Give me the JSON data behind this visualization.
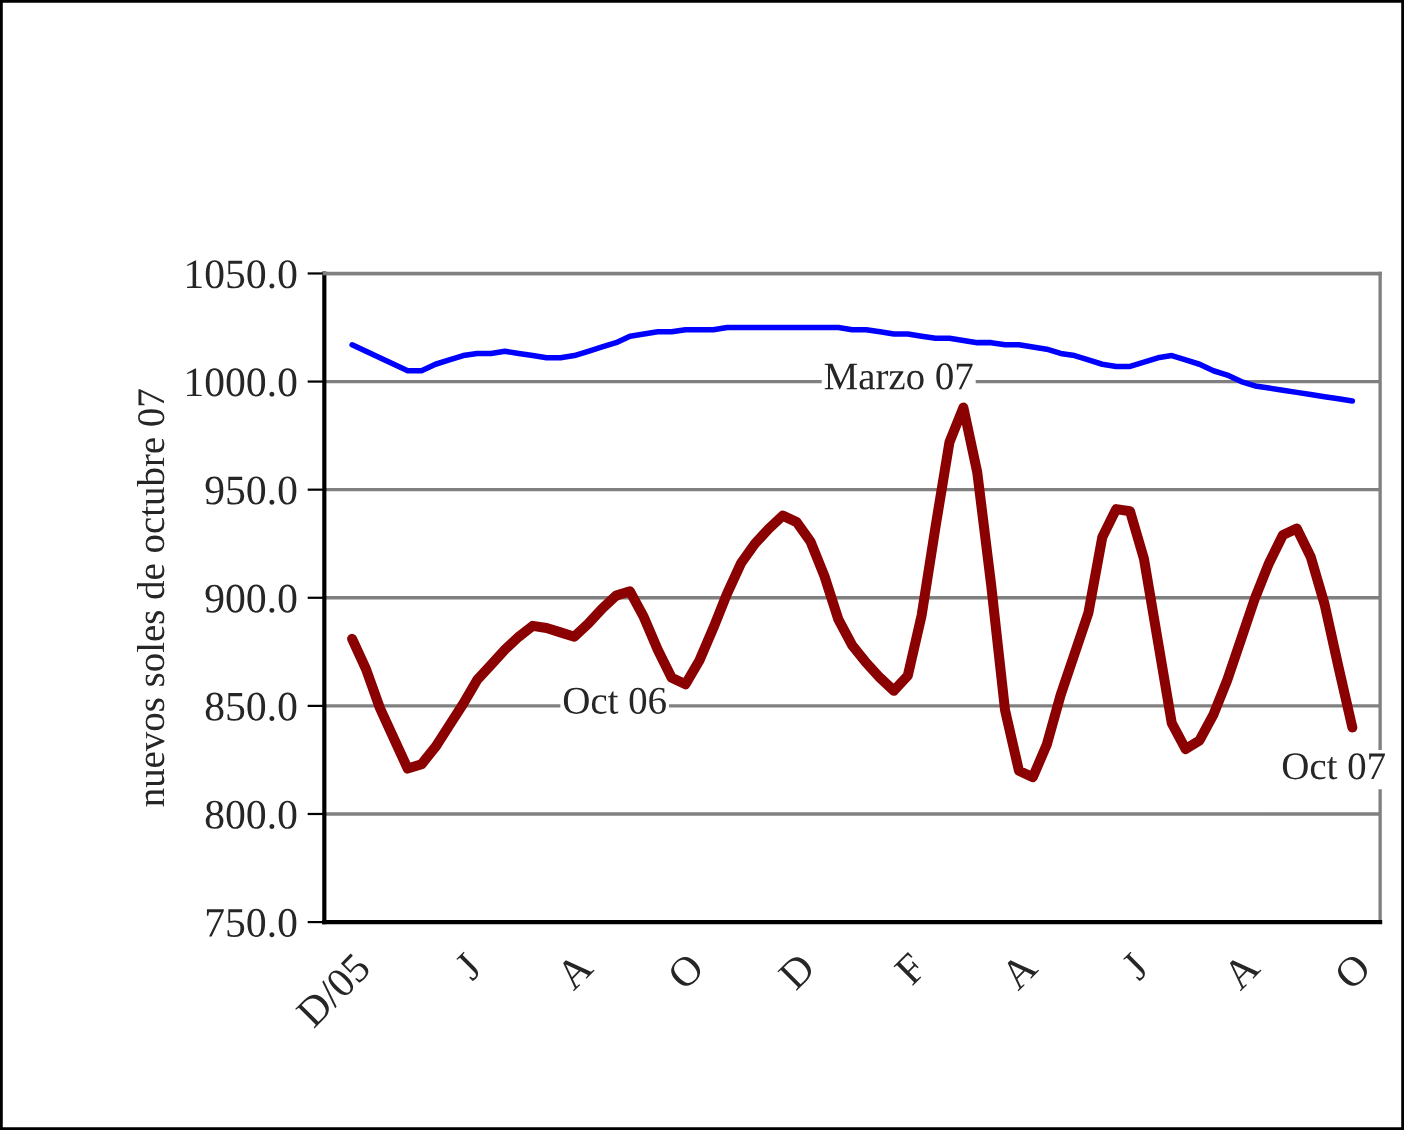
{
  "chart_data": {
    "type": "line",
    "ylabel": "nuevos soles de octubre 07",
    "categories": [
      "D/05",
      null,
      null,
      null,
      null,
      null,
      null,
      null,
      "J",
      null,
      null,
      null,
      null,
      null,
      null,
      null,
      "A",
      null,
      null,
      null,
      null,
      null,
      null,
      null,
      "O",
      null,
      null,
      null,
      null,
      null,
      null,
      null,
      "D",
      null,
      null,
      null,
      null,
      null,
      null,
      null,
      "F",
      null,
      null,
      null,
      null,
      null,
      null,
      null,
      "A",
      null,
      null,
      null,
      null,
      null,
      null,
      null,
      "J",
      null,
      null,
      null,
      null,
      null,
      null,
      null,
      "A",
      null,
      null,
      null,
      null,
      null,
      null,
      null,
      "O"
    ],
    "series": [
      {
        "color": "#0000ff",
        "values": [
          1017,
          1014,
          1011,
          1008,
          1005,
          1005,
          1008,
          1010,
          1012,
          1013,
          1013,
          1014,
          1013,
          1012,
          1011,
          1011,
          1012,
          1014,
          1016,
          1018,
          1021,
          1022,
          1023,
          1023,
          1024,
          1024,
          1024,
          1025,
          1025,
          1025,
          1025,
          1025,
          1025,
          1025,
          1025,
          1025,
          1024,
          1024,
          1023,
          1022,
          1022,
          1021,
          1020,
          1020,
          1019,
          1018,
          1018,
          1017,
          1017,
          1016,
          1015,
          1013,
          1012,
          1010,
          1008,
          1007,
          1007,
          1009,
          1011,
          1012,
          1010,
          1008,
          1005,
          1003,
          1000,
          998,
          997,
          996,
          995,
          994,
          993,
          992,
          991
        ]
      },
      {
        "color": "#8b0000",
        "values": [
          881,
          867,
          849,
          835,
          821,
          823,
          831,
          841,
          851,
          862,
          869,
          876,
          882,
          887,
          886,
          884,
          882,
          888,
          895,
          901,
          903,
          891,
          876,
          863,
          860,
          871,
          886,
          902,
          916,
          925,
          932,
          938,
          935,
          926,
          910,
          890,
          878,
          870,
          863,
          857,
          864,
          892,
          933,
          972,
          988,
          958,
          906,
          848,
          820,
          817,
          832,
          855,
          874,
          893,
          928,
          941,
          940,
          918,
          880,
          842,
          830,
          834,
          846,
          862,
          881,
          900,
          916,
          929,
          932,
          919,
          897,
          868,
          840
        ]
      }
    ],
    "annotations": [
      "Oct 06",
      "Marzo 07",
      "Oct 07"
    ],
    "ylim": [
      750,
      1050
    ],
    "yticks": [
      {
        "value": 750,
        "label": "750.0"
      },
      {
        "value": 800,
        "label": "800.0"
      },
      {
        "value": 850,
        "label": "850.0"
      },
      {
        "value": 900,
        "label": "900.0"
      },
      {
        "value": 950,
        "label": "950.0"
      },
      {
        "value": 1000,
        "label": "1000.0"
      },
      {
        "value": 1050,
        "label": "1050.0"
      }
    ],
    "grid": "y",
    "legend": false,
    "marker": "none",
    "line_style": "solid"
  }
}
